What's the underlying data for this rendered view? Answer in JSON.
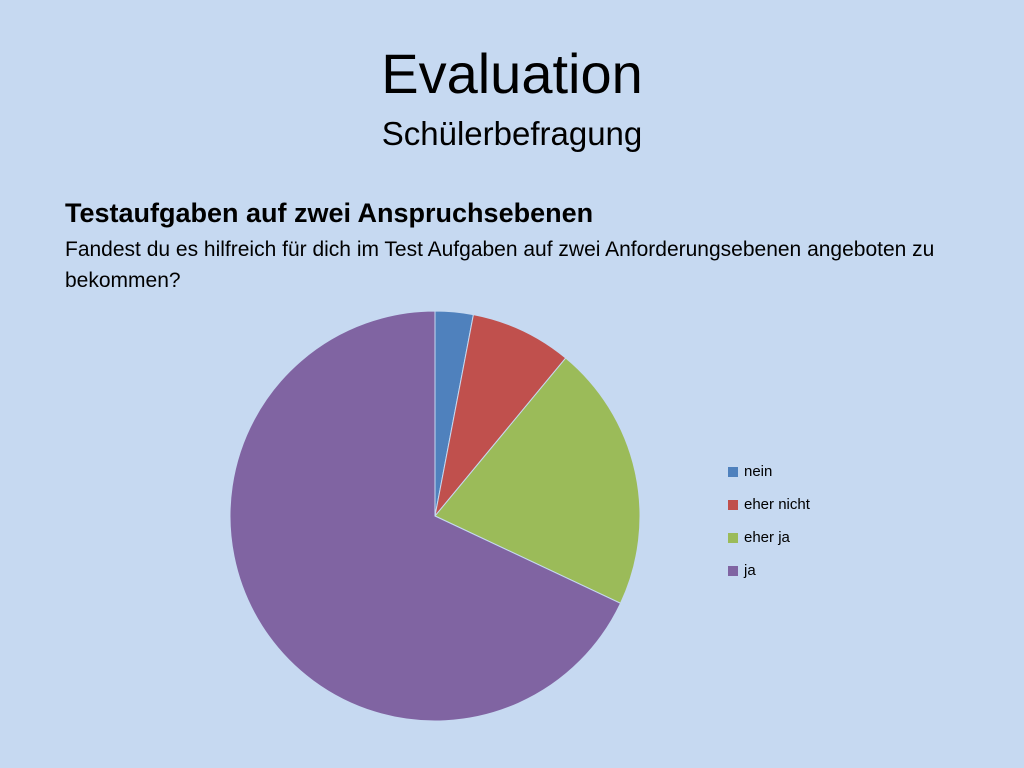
{
  "slide": {
    "title": "Evaluation",
    "subtitle": "Schülerbefragung",
    "heading": "Testaufgaben auf zwei Anspruchsebenen",
    "question": "Fandest du es hilfreich für dich im Test Aufgaben auf zwei Anforderungsebenen angeboten zu bekommen?"
  },
  "chart_data": {
    "type": "pie",
    "categories": [
      "nein",
      "eher nicht",
      "eher ja",
      "ja"
    ],
    "values": [
      3,
      8,
      21,
      68
    ],
    "colors": [
      "#4f81bd",
      "#c0504d",
      "#9bbb59",
      "#8064a2"
    ],
    "start_angle_deg": 0,
    "direction": "clockwise",
    "legend_position": "right"
  }
}
